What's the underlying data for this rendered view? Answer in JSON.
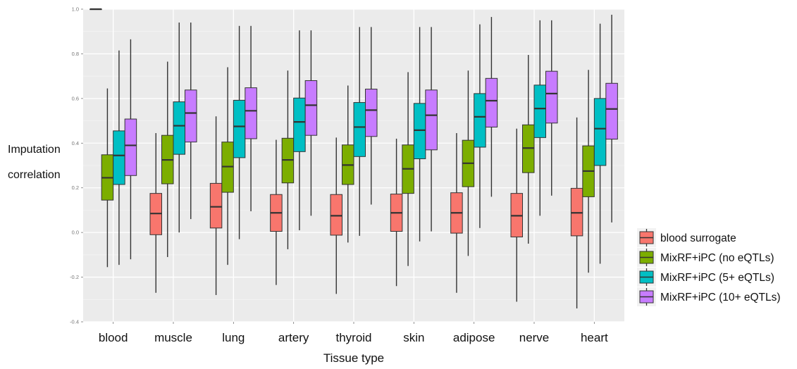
{
  "chart_data": {
    "type": "box",
    "xlabel": "Tissue type",
    "ylabel_lines": [
      "Imputation",
      "correlation"
    ],
    "ylim": [
      -0.4,
      1.0
    ],
    "yticks": [
      "-0.4",
      "-0.2",
      "0.0",
      "0.2",
      "0.4",
      "0.6",
      "0.8",
      "1.0"
    ],
    "grid": true,
    "legend_position": "right",
    "categories": [
      "blood",
      "muscle",
      "lung",
      "artery",
      "thyroid",
      "skin",
      "adipose",
      "nerve",
      "heart"
    ],
    "series": [
      {
        "name": "blood surrogate",
        "color": "#F8766D",
        "boxes": [
          {
            "min": 1.0,
            "q1": 1.0,
            "median": 1.0,
            "q3": 1.0,
            "max": 1.0
          },
          {
            "min": -0.27,
            "q1": -0.01,
            "median": 0.085,
            "q3": 0.175,
            "max": 0.445
          },
          {
            "min": -0.28,
            "q1": 0.02,
            "median": 0.115,
            "q3": 0.22,
            "max": 0.52
          },
          {
            "min": -0.235,
            "q1": 0.005,
            "median": 0.088,
            "q3": 0.17,
            "max": 0.415
          },
          {
            "min": -0.275,
            "q1": -0.012,
            "median": 0.075,
            "q3": 0.17,
            "max": 0.425
          },
          {
            "min": -0.24,
            "q1": 0.005,
            "median": 0.088,
            "q3": 0.172,
            "max": 0.42
          },
          {
            "min": -0.27,
            "q1": -0.003,
            "median": 0.088,
            "q3": 0.178,
            "max": 0.445
          },
          {
            "min": -0.31,
            "q1": -0.02,
            "median": 0.075,
            "q3": 0.175,
            "max": 0.465
          },
          {
            "min": -0.34,
            "q1": -0.015,
            "median": 0.088,
            "q3": 0.198,
            "max": 0.515
          }
        ]
      },
      {
        "name": "MixRF+iPC (no eQTLs)",
        "color": "#7CAE00",
        "boxes": [
          {
            "min": -0.155,
            "q1": 0.145,
            "median": 0.245,
            "q3": 0.348,
            "max": 0.645
          },
          {
            "min": -0.11,
            "q1": 0.218,
            "median": 0.325,
            "q3": 0.435,
            "max": 0.765
          },
          {
            "min": -0.145,
            "q1": 0.18,
            "median": 0.295,
            "q3": 0.405,
            "max": 0.74
          },
          {
            "min": -0.075,
            "q1": 0.222,
            "median": 0.325,
            "q3": 0.422,
            "max": 0.725
          },
          {
            "min": -0.045,
            "q1": 0.215,
            "median": 0.302,
            "q3": 0.392,
            "max": 0.658
          },
          {
            "min": -0.15,
            "q1": 0.175,
            "median": 0.285,
            "q3": 0.392,
            "max": 0.718
          },
          {
            "min": -0.105,
            "q1": 0.205,
            "median": 0.31,
            "q3": 0.413,
            "max": 0.725
          },
          {
            "min": -0.05,
            "q1": 0.268,
            "median": 0.378,
            "q3": 0.482,
            "max": 0.795
          },
          {
            "min": -0.18,
            "q1": 0.16,
            "median": 0.275,
            "q3": 0.388,
            "max": 0.728
          }
        ]
      },
      {
        "name": "MixRF+iPC (5+ eQTLs)",
        "color": "#00BFC4",
        "boxes": [
          {
            "min": -0.145,
            "q1": 0.215,
            "median": 0.345,
            "q3": 0.455,
            "max": 0.815
          },
          {
            "min": 0.0,
            "q1": 0.35,
            "median": 0.478,
            "q3": 0.585,
            "max": 0.94
          },
          {
            "min": -0.03,
            "q1": 0.335,
            "median": 0.475,
            "q3": 0.592,
            "max": 0.925
          },
          {
            "min": 0.01,
            "q1": 0.362,
            "median": 0.495,
            "q3": 0.602,
            "max": 0.905
          },
          {
            "min": -0.015,
            "q1": 0.34,
            "median": 0.472,
            "q3": 0.582,
            "max": 0.92
          },
          {
            "min": -0.04,
            "q1": 0.33,
            "median": 0.458,
            "q3": 0.578,
            "max": 0.92
          },
          {
            "min": 0.02,
            "q1": 0.382,
            "median": 0.518,
            "q3": 0.622,
            "max": 0.932
          },
          {
            "min": 0.075,
            "q1": 0.425,
            "median": 0.555,
            "q3": 0.66,
            "max": 0.95
          },
          {
            "min": -0.14,
            "q1": 0.3,
            "median": 0.465,
            "q3": 0.6,
            "max": 0.935
          }
        ]
      },
      {
        "name": "MixRF+iPC (10+ eQTLs)",
        "color": "#C77CFF",
        "boxes": [
          {
            "min": -0.12,
            "q1": 0.255,
            "median": 0.39,
            "q3": 0.508,
            "max": 0.865
          },
          {
            "min": 0.06,
            "q1": 0.405,
            "median": 0.535,
            "q3": 0.638,
            "max": 0.94
          },
          {
            "min": 0.095,
            "q1": 0.42,
            "median": 0.545,
            "q3": 0.648,
            "max": 0.925
          },
          {
            "min": 0.075,
            "q1": 0.435,
            "median": 0.57,
            "q3": 0.68,
            "max": 0.905
          },
          {
            "min": 0.125,
            "q1": 0.43,
            "median": 0.548,
            "q3": 0.642,
            "max": 0.92
          },
          {
            "min": 0.005,
            "q1": 0.37,
            "median": 0.525,
            "q3": 0.638,
            "max": 0.92
          },
          {
            "min": 0.16,
            "q1": 0.472,
            "median": 0.59,
            "q3": 0.69,
            "max": 0.965
          },
          {
            "min": 0.165,
            "q1": 0.49,
            "median": 0.622,
            "q3": 0.722,
            "max": 0.95
          },
          {
            "min": 0.045,
            "q1": 0.418,
            "median": 0.553,
            "q3": 0.668,
            "max": 0.975
          }
        ]
      }
    ]
  }
}
